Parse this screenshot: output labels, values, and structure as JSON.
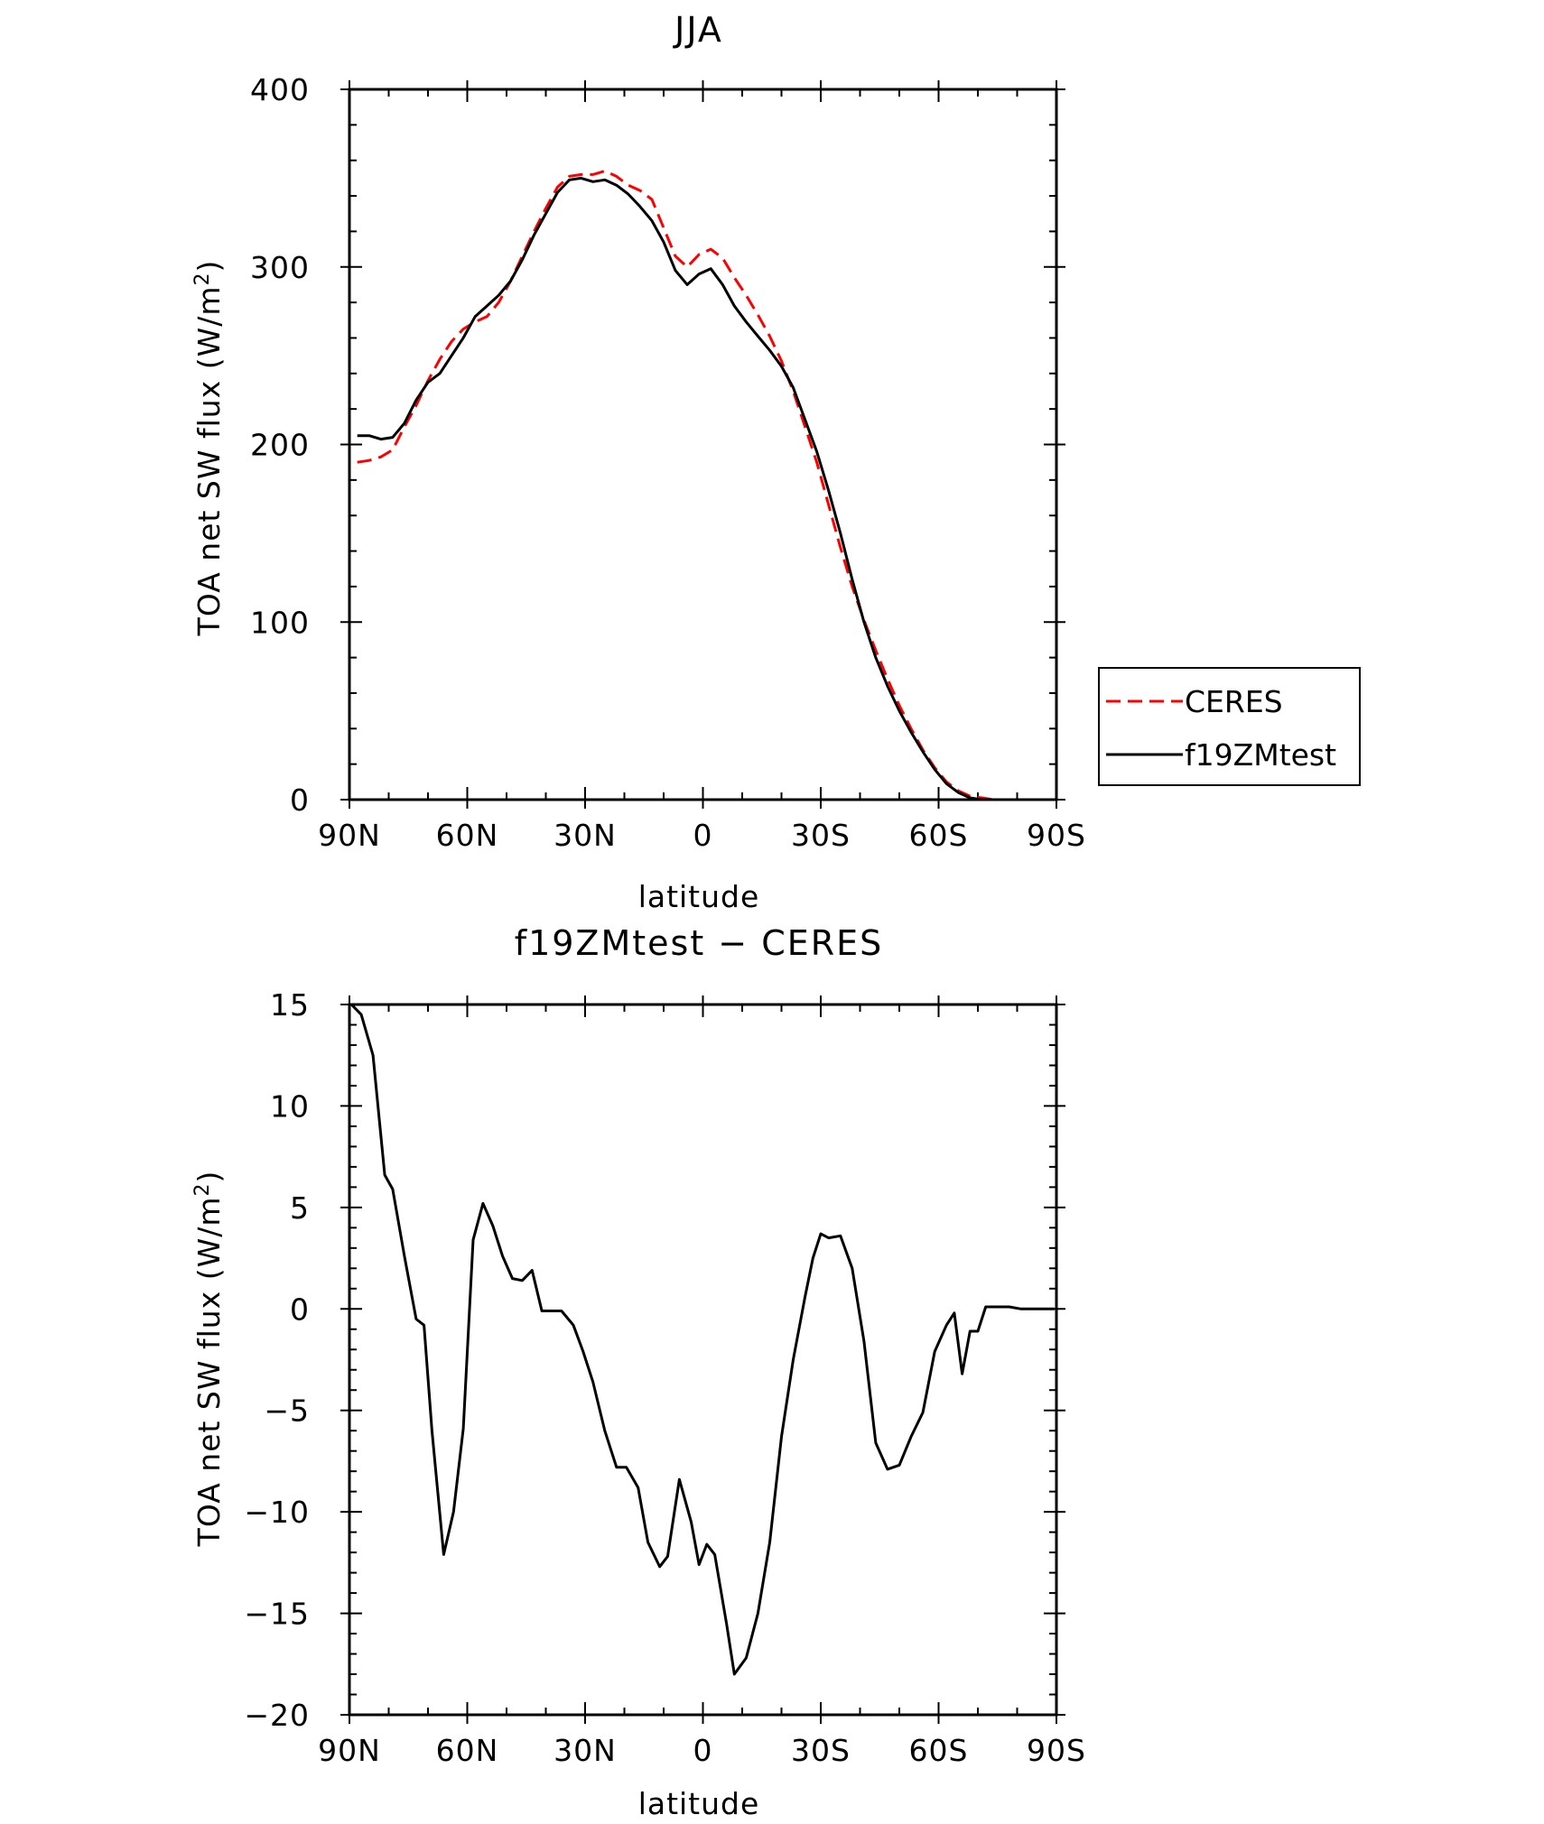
{
  "chart_data": [
    {
      "type": "line",
      "title": "JJA",
      "xlabel": "latitude",
      "ylabel": "TOA net SW flux (W/m",
      "ylabel_sup": "2",
      "ylabel_tail": ")",
      "xlim": [
        90,
        -90
      ],
      "ylim": [
        0,
        400
      ],
      "x_ticks": [
        {
          "value": 90,
          "label": "90N"
        },
        {
          "value": 60,
          "label": "60N"
        },
        {
          "value": 30,
          "label": "30N"
        },
        {
          "value": 0,
          "label": "0"
        },
        {
          "value": -30,
          "label": "30S"
        },
        {
          "value": -60,
          "label": "60S"
        },
        {
          "value": -90,
          "label": "90S"
        }
      ],
      "y_ticks": [
        {
          "value": 0,
          "label": "0"
        },
        {
          "value": 100,
          "label": "100"
        },
        {
          "value": 200,
          "label": "200"
        },
        {
          "value": 300,
          "label": "300"
        },
        {
          "value": 400,
          "label": "400"
        }
      ],
      "legend_position": "right",
      "series": [
        {
          "name": "CERES",
          "color": "#ff0000",
          "style": "dashed",
          "x": [
            88,
            85,
            82,
            79,
            76,
            73,
            70,
            67,
            64,
            61,
            58,
            55,
            52,
            49,
            46,
            43,
            40,
            37,
            34,
            31,
            28,
            25,
            22,
            19,
            16,
            13,
            10,
            7,
            4,
            1,
            -2,
            -5,
            -8,
            -11,
            -14,
            -17,
            -20,
            -23,
            -26,
            -29,
            -32,
            -35,
            -38,
            -41,
            -44,
            -47,
            -50,
            -53,
            -56,
            -59,
            -62,
            -65,
            -68,
            -71,
            -74,
            -77,
            -80,
            -83,
            -86,
            -89
          ],
          "y": [
            190,
            191,
            193,
            197,
            210,
            222,
            236,
            248,
            258,
            265,
            269,
            272,
            280,
            292,
            306,
            320,
            333,
            345,
            351,
            352,
            352,
            354,
            351,
            346,
            343,
            338,
            322,
            306,
            300,
            307,
            310,
            305,
            294,
            284,
            273,
            261,
            247,
            230,
            210,
            190,
            166,
            142,
            120,
            101,
            84,
            68,
            53,
            40,
            28,
            18,
            10,
            5,
            2,
            1,
            0,
            0,
            0,
            0,
            0,
            0
          ]
        },
        {
          "name": "f19ZMtest",
          "color": "#000000",
          "style": "solid",
          "x": [
            88,
            85,
            82,
            79,
            76,
            73,
            70,
            67,
            64,
            61,
            58,
            55,
            52,
            49,
            46,
            43,
            40,
            37,
            34,
            31,
            28,
            25,
            22,
            19,
            16,
            13,
            10,
            7,
            4,
            1,
            -2,
            -5,
            -8,
            -11,
            -14,
            -17,
            -20,
            -23,
            -26,
            -29,
            -32,
            -35,
            -38,
            -41,
            -44,
            -47,
            -50,
            -53,
            -56,
            -59,
            -62,
            -65,
            -68,
            -71,
            -74,
            -77,
            -80,
            -83,
            -86,
            -89
          ],
          "y": [
            205,
            205,
            203,
            204,
            212,
            225,
            235,
            240,
            250,
            260,
            272,
            278,
            284,
            292,
            304,
            318,
            330,
            342,
            349,
            350,
            348,
            349,
            346,
            341,
            334,
            326,
            314,
            298,
            290,
            296,
            299,
            290,
            278,
            269,
            261,
            253,
            244,
            232,
            214,
            196,
            174,
            150,
            124,
            100,
            80,
            64,
            50,
            38,
            27,
            17,
            9,
            4,
            1,
            0,
            0,
            0,
            0,
            0,
            0,
            0
          ]
        }
      ]
    },
    {
      "type": "line",
      "title": "f19ZMtest − CERES",
      "xlabel": "latitude",
      "ylabel": "TOA net SW flux (W/m",
      "ylabel_sup": "2",
      "ylabel_tail": ")",
      "xlim": [
        90,
        -90
      ],
      "ylim": [
        -20,
        15
      ],
      "x_ticks": [
        {
          "value": 90,
          "label": "90N"
        },
        {
          "value": 60,
          "label": "60N"
        },
        {
          "value": 30,
          "label": "30N"
        },
        {
          "value": 0,
          "label": "0"
        },
        {
          "value": -30,
          "label": "30S"
        },
        {
          "value": -60,
          "label": "60S"
        },
        {
          "value": -90,
          "label": "90S"
        }
      ],
      "y_ticks": [
        {
          "value": -20,
          "label": "−20"
        },
        {
          "value": -15,
          "label": "−15"
        },
        {
          "value": -10,
          "label": "−10"
        },
        {
          "value": -5,
          "label": "−5"
        },
        {
          "value": 0,
          "label": "0"
        },
        {
          "value": 5,
          "label": "5"
        },
        {
          "value": 10,
          "label": "10"
        },
        {
          "value": 15,
          "label": "15"
        }
      ],
      "series": [
        {
          "name": "",
          "color": "#000000",
          "style": "solid",
          "x": [
            89.5,
            87,
            84,
            81,
            79,
            76,
            73,
            71,
            69,
            66,
            63.5,
            61,
            58.5,
            56,
            53.5,
            51,
            48.5,
            46,
            43.5,
            41,
            38.5,
            36,
            33,
            30.5,
            28,
            25,
            22,
            19.5,
            16.5,
            14,
            11,
            9,
            6,
            3,
            1,
            -1,
            -3,
            -6,
            -8,
            -11,
            -14,
            -17,
            -20,
            -23,
            -26,
            -28,
            -30,
            -32,
            -35,
            -38,
            -41,
            -44,
            -47,
            -50,
            -53,
            -56,
            -59,
            -62,
            -64,
            -66,
            -68,
            -70,
            -72,
            -75,
            -78,
            -81,
            -84,
            -87,
            -89.5
          ],
          "y": [
            15,
            14.5,
            12.5,
            6.6,
            5.9,
            2.6,
            -0.5,
            -0.8,
            -6,
            -12.1,
            -10,
            -5.9,
            3.4,
            5.2,
            4.1,
            2.6,
            1.5,
            1.4,
            1.9,
            -0.1,
            -0.1,
            -0.1,
            -0.8,
            -2.1,
            -3.6,
            -6,
            -7.8,
            -7.8,
            -8.8,
            -11.5,
            -12.7,
            -12.2,
            -8.4,
            -10.5,
            -12.6,
            -11.6,
            -12.1,
            -15.5,
            -18,
            -17.2,
            -15,
            -11.5,
            -6.3,
            -2.5,
            0.6,
            2.5,
            3.7,
            3.5,
            3.6,
            2,
            -1.6,
            -6.6,
            -7.9,
            -7.7,
            -6.3,
            -5.1,
            -2.1,
            -0.8,
            -0.2,
            -3.2,
            -1.1,
            -1.1,
            0.1,
            0.1,
            0.1,
            0,
            0,
            0,
            0
          ]
        }
      ]
    }
  ]
}
